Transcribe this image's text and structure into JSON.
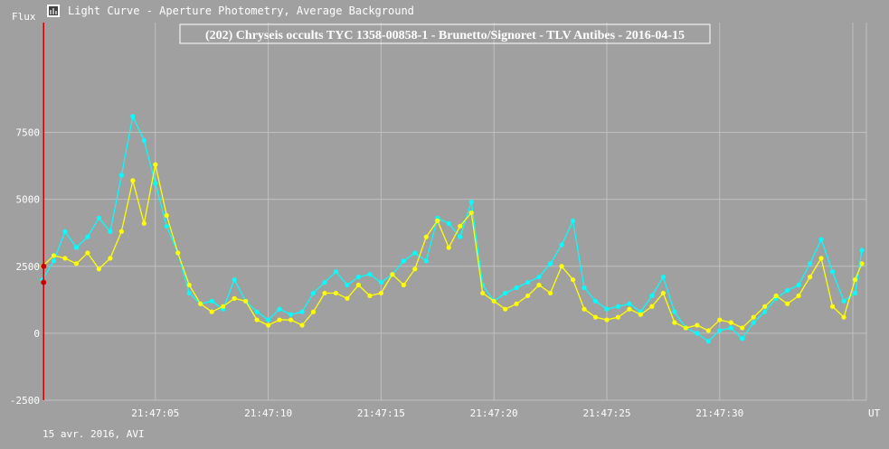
{
  "window": {
    "title": "Light Curve - Aperture Photometry, Average Background",
    "icon": "chart-app-icon"
  },
  "colors": {
    "background": "#a0a0a0",
    "grid": "#c0c0c0",
    "series1": "#00ffff",
    "series2": "#ffff00",
    "cursor": "#cc0000",
    "text": "#ffffff"
  },
  "footer": {
    "date_label": "15 avr. 2016, AVI"
  },
  "chart_data": {
    "type": "line",
    "title": "(202) Chryseis occults TYC 1358-00858-1 - Brunetto/Signoret - TLV Antibes - 2016-04-15",
    "ylabel": "Flux",
    "xlabel": "UT",
    "ylim": [
      -2500,
      11600
    ],
    "xlim": [
      0,
      36.5
    ],
    "yticks": [
      {
        "value": 7500,
        "label": "7500"
      },
      {
        "value": 5000,
        "label": "5000"
      },
      {
        "value": 2500,
        "label": "2500"
      },
      {
        "value": 0,
        "label": "0"
      },
      {
        "value": -2500,
        "label": "-2500"
      }
    ],
    "xticks": [
      {
        "value": 5,
        "label": "21:47:05"
      },
      {
        "value": 10,
        "label": "21:47:10"
      },
      {
        "value": 15,
        "label": "21:47:15"
      },
      {
        "value": 20,
        "label": "21:47:20"
      },
      {
        "value": 25,
        "label": "21:47:25"
      },
      {
        "value": 30,
        "label": "21:47:30"
      },
      {
        "value": 35.9,
        "label": ""
      }
    ],
    "grid": true,
    "cursor": {
      "x": 0.05,
      "markers": [
        2500,
        1900
      ]
    },
    "series": [
      {
        "color": "#00ffff",
        "x": [
          0,
          0.5,
          1,
          1.5,
          2,
          2.5,
          3,
          3.5,
          4,
          4.5,
          5,
          5.5,
          6,
          6.5,
          7,
          7.5,
          8,
          8.5,
          9,
          9.5,
          10,
          10.5,
          11,
          11.5,
          12,
          12.5,
          13,
          13.5,
          14,
          14.5,
          15,
          15.5,
          16,
          16.5,
          17,
          17.5,
          18,
          18.5,
          19,
          19.5,
          20,
          20.5,
          21,
          21.5,
          22,
          22.5,
          23,
          23.5,
          24,
          24.5,
          25,
          25.5,
          26,
          26.5,
          27,
          27.5,
          28,
          28.5,
          29,
          29.5,
          30,
          30.5,
          31,
          31.5,
          32,
          32.5,
          33,
          33.5,
          34,
          34.5,
          35,
          35.5,
          36,
          36.3
        ],
        "y": [
          2000,
          2700,
          3800,
          3200,
          3600,
          4300,
          3800,
          5900,
          8100,
          7200,
          5600,
          4000,
          3000,
          1500,
          1100,
          1200,
          900,
          2000,
          1200,
          800,
          500,
          900,
          700,
          800,
          1500,
          1900,
          2300,
          1800,
          2100,
          2200,
          1900,
          2200,
          2700,
          3000,
          2700,
          4300,
          4100,
          3600,
          4900,
          1800,
          1200,
          1500,
          1700,
          1900,
          2100,
          2600,
          3300,
          4200,
          1700,
          1200,
          900,
          1000,
          1100,
          800,
          1400,
          2100,
          800,
          200,
          0,
          -300,
          100,
          200,
          -200,
          400,
          800,
          1300,
          1600,
          1800,
          2600,
          3500,
          2300,
          1200,
          1500,
          3100
        ]
      },
      {
        "color": "#ffff00",
        "x": [
          0,
          0.5,
          1,
          1.5,
          2,
          2.5,
          3,
          3.5,
          4,
          4.5,
          5,
          5.5,
          6,
          6.5,
          7,
          7.5,
          8,
          8.5,
          9,
          9.5,
          10,
          10.5,
          11,
          11.5,
          12,
          12.5,
          13,
          13.5,
          14,
          14.5,
          15,
          15.5,
          16,
          16.5,
          17,
          17.5,
          18,
          18.5,
          19,
          19.5,
          20,
          20.5,
          21,
          21.5,
          22,
          22.5,
          23,
          23.5,
          24,
          24.5,
          25,
          25.5,
          26,
          26.5,
          27,
          27.5,
          28,
          28.5,
          29,
          29.5,
          30,
          30.5,
          31,
          31.5,
          32,
          32.5,
          33,
          33.5,
          34,
          34.5,
          35,
          35.5,
          36,
          36.3
        ],
        "y": [
          2500,
          2900,
          2800,
          2600,
          3000,
          2400,
          2800,
          3800,
          5700,
          4100,
          6300,
          4400,
          3000,
          1800,
          1100,
          800,
          1000,
          1300,
          1200,
          500,
          300,
          500,
          500,
          300,
          800,
          1500,
          1500,
          1300,
          1800,
          1400,
          1500,
          2200,
          1800,
          2400,
          3600,
          4200,
          3200,
          4000,
          4500,
          1500,
          1200,
          900,
          1100,
          1400,
          1800,
          1500,
          2500,
          2000,
          900,
          600,
          500,
          600,
          900,
          700,
          1000,
          1500,
          400,
          200,
          300,
          100,
          500,
          400,
          200,
          600,
          1000,
          1400,
          1100,
          1400,
          2100,
          2800,
          1000,
          600,
          2000,
          2600
        ]
      }
    ]
  }
}
